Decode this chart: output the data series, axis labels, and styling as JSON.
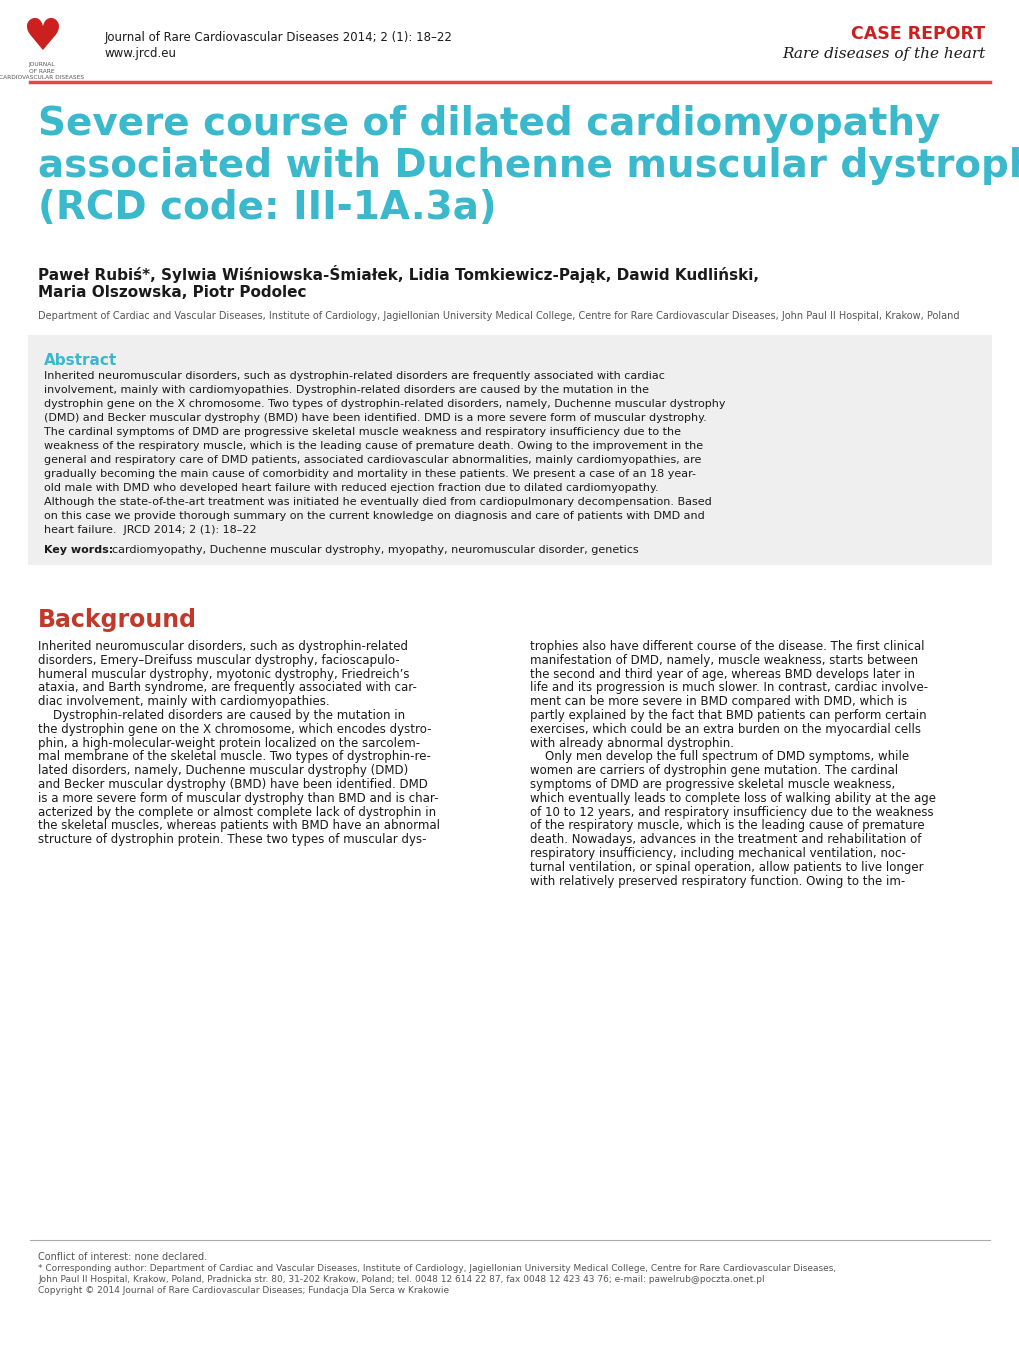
{
  "header_journal": "Journal of Rare Cardiovascular Diseases 2014; 2 (1): 18–22",
  "header_url": "www.jrcd.eu",
  "header_case_report": "CASE REPORT",
  "header_subtitle": "Rare diseases of the heart",
  "red_line_color": "#e8474a",
  "title_color": "#3ab8cc",
  "title_line1": "Severe course of dilated cardiomyopathy",
  "title_line2": "associated with Duchenne muscular dystrophy",
  "title_line3": "(RCD code: III-1A.3a)",
  "authors": "Paweł Rubiś*, Sylwia Wiśniowska-Śmiałek, Lidia Tomkiewicz-Pająk, Dawid Kudliński,",
  "authors2": "Maria Olszowska, Piotr Podolec",
  "affiliation": "Department of Cardiac and Vascular Diseases, Institute of Cardiology, Jagiellonian University Medical College, Centre for Rare Cardiovascular Diseases, John Paul II Hospital, Krakow, Poland",
  "abstract_title": "Abstract",
  "abstract_color": "#3ab8cc",
  "abstract_bg": "#efefef",
  "abstract_text": "Inherited neuromuscular disorders, such as dystrophin-related disorders are frequently associated with cardiac involvement, mainly with cardiomyopathies. Dystrophin-related disorders are caused by the mutation in the dystrophin gene on the X chromosome. Two types of dystrophin-related disorders, namely, Duchenne muscular dystrophy (DMD) and Becker muscular dystrophy (BMD) have been identified. DMD is a more severe form of muscular dystrophy. The cardinal symptoms of DMD are progressive skeletal muscle weakness and respiratory insufficiency due to the weakness of the respiratory muscle, which is the leading cause of premature death. Owing to the improvement in the general and respiratory care of DMD patients, associated cardiovascular abnormalities, mainly cardiomyopathies, are gradually becoming the main cause of comorbidity and mortality in these patients. We present a case of an 18 year-old male with DMD who developed heart failure with reduced ejection fraction due to dilated cardiomyopathy. Although the state-of-the-art treatment was initiated he eventually died from cardiopulmonary decompensation. Based on this case we provide thorough summary on the current knowledge on diagnosis and care of patients with DMD and heart failure.  JRCD 2014; 2 (1): 18–22",
  "keywords_label": "Key words: ",
  "keywords_text": "cardiomyopathy, Duchenne muscular dystrophy, myopathy, neuromuscular disorder, genetics",
  "background_title": "Background",
  "background_color": "#c0392b",
  "background_col1_lines": [
    "Inherited neuromuscular disorders, such as dystrophin-related",
    "disorders, Emery–Dreifuss muscular dystrophy, facioscapulo-",
    "humeral muscular dystrophy, myotonic dystrophy, Friedreich’s",
    "ataxia, and Barth syndrome, are frequently associated with car-",
    "diac involvement, mainly with cardiomyopathies.",
    "    Dystrophin-related disorders are caused by the mutation in",
    "the dystrophin gene on the X chromosome, which encodes dystro-",
    "phin, a high-molecular-weight protein localized on the sarcolem-",
    "mal membrane of the skeletal muscle. Two types of dystrophin-re-",
    "lated disorders, namely, Duchenne muscular dystrophy (DMD)",
    "and Becker muscular dystrophy (BMD) have been identified. DMD",
    "is a more severe form of muscular dystrophy than BMD and is char-",
    "acterized by the complete or almost complete lack of dystrophin in",
    "the skeletal muscles, whereas patients with BMD have an abnormal",
    "structure of dystrophin protein. These two types of muscular dys-"
  ],
  "background_col2_lines": [
    "trophies also have different course of the disease. The first clinical",
    "manifestation of DMD, namely, muscle weakness, starts between",
    "the second and third year of age, whereas BMD develops later in",
    "life and its progression is much slower. In contrast, cardiac involve-",
    "ment can be more severe in BMD compared with DMD, which is",
    "partly explained by the fact that BMD patients can perform certain",
    "exercises, which could be an extra burden on the myocardial cells",
    "with already abnormal dystrophin.",
    "    Only men develop the full spectrum of DMD symptoms, while",
    "women are carriers of dystrophin gene mutation. The cardinal",
    "symptoms of DMD are progressive skeletal muscle weakness,",
    "which eventually leads to complete loss of walking ability at the age",
    "of 10 to 12 years, and respiratory insufficiency due to the weakness",
    "of the respiratory muscle, which is the leading cause of premature",
    "death. Nowadays, advances in the treatment and rehabilitation of",
    "respiratory insufficiency, including mechanical ventilation, noc-",
    "turnal ventilation, or spinal operation, allow patients to live longer",
    "with relatively preserved respiratory function. Owing to the im-"
  ],
  "footer_conflict": "Conflict of interest: none declared.",
  "footer_corresponding": "* Corresponding author: Department of Cardiac and Vascular Diseases, Institute of Cardiology, Jagiellonian University Medical College, Centre for Rare Cardiovascular Diseases,",
  "footer_corresponding2": "John Paul II Hospital, Krakow, Poland, Pradnicka str. 80, 31-202 Krakow, Poland; tel. 0048 12 614 22 87, fax 0048 12 423 43 76; e-mail: pawelrub@poczta.onet.pl",
  "footer_copyright": "Copyright © 2014 Journal of Rare Cardiovascular Diseases; Fundacja Dla Serca w Krakowie",
  "text_color": "#1a1a1a",
  "logo_text1": "JOURNAL",
  "logo_text2": "OF RARE",
  "logo_text3": "CARDIOVASCULAR DISEASES"
}
